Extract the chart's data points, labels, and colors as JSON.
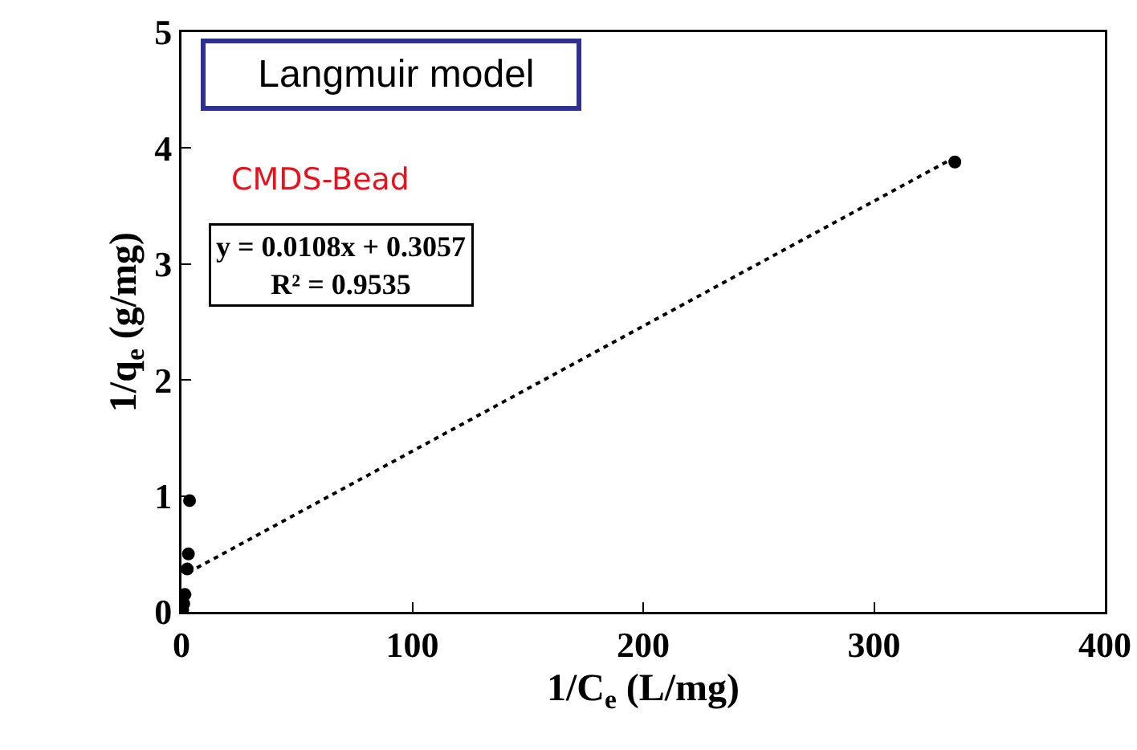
{
  "chart_data": {
    "type": "scatter",
    "xlabel": "1/C$_{e}$ (L/mg)",
    "ylabel": "1/q$_{e}$ (g/mg)",
    "xlim": [
      0,
      400
    ],
    "xticks": [
      0,
      100,
      200,
      300,
      400
    ],
    "ylim": [
      0,
      5
    ],
    "yticks": [
      0,
      1,
      2,
      3,
      4,
      5
    ],
    "grid": false,
    "series": [
      {
        "type": "scatter",
        "color": "#000000",
        "marker": "circle",
        "x": [
          0.5,
          1,
          1.5,
          2.5,
          3,
          3.5,
          335
        ],
        "values": [
          0.02,
          0.07,
          0.15,
          0.37,
          0.5,
          0.96,
          3.88
        ]
      },
      {
        "type": "line",
        "color": "#000000",
        "marker": "none",
        "line_style": "dotted",
        "x": [
          3,
          335
        ],
        "values": [
          0.34,
          3.92
        ]
      }
    ],
    "annotations": [
      "Langmuir model",
      "CMDS-Bead",
      "y = 0.0108x + 0.3057\nR² = 0.9535"
    ]
  }
}
